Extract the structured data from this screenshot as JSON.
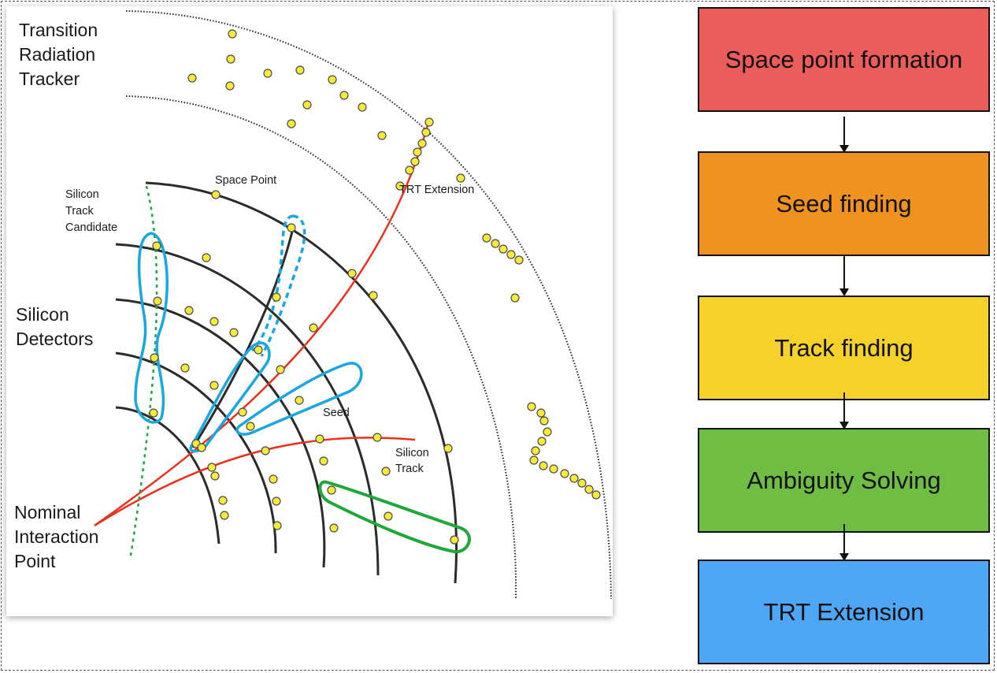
{
  "diagram": {
    "labels": {
      "trt_detector": [
        "Transition",
        "Radiation",
        "Tracker"
      ],
      "silicon_detectors": [
        "Silicon",
        "Detectors"
      ],
      "interaction_point": [
        "Nominal",
        "Interaction",
        "Point"
      ],
      "silicon_track_candidate": [
        "Silicon",
        "Track",
        "Candidate"
      ],
      "space_point": "Space Point",
      "trt_extension": "TRT Extension",
      "seed": "Seed",
      "silicon_track": [
        "Silicon",
        "Track"
      ]
    },
    "colors": {
      "detector_layer": "#2b2b2b",
      "track_line": "#e8321e",
      "hit_fill": "#f7ea3a",
      "hit_stroke": "#4a4a4a",
      "seed_outline": "#1aa7e0",
      "candidate_outline": "#1fa83a",
      "candidate_path": "#1fa83a"
    }
  },
  "flowchart": {
    "steps": [
      {
        "label": "Space point formation",
        "color": "#eb5d5a"
      },
      {
        "label": "Seed finding",
        "color": "#f0921f"
      },
      {
        "label": "Track finding",
        "color": "#f6d12a"
      },
      {
        "label": "Ambiguity Solving",
        "color": "#70bd44"
      },
      {
        "label": "TRT Extension",
        "color": "#4ea6f7"
      }
    ]
  }
}
